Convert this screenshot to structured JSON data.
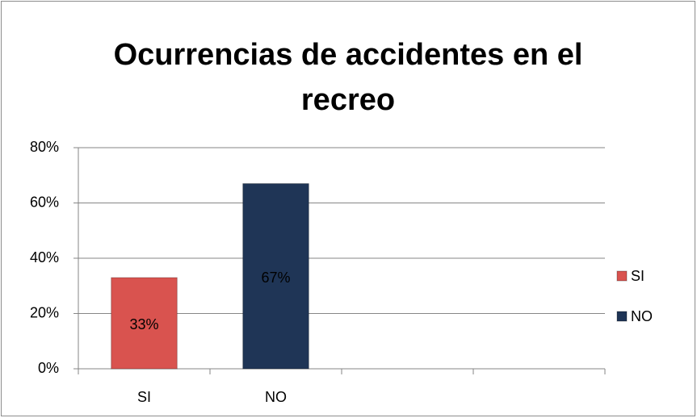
{
  "chart_data": {
    "type": "bar",
    "title": "Ocurrencias de accidentes en el recreo",
    "categories": [
      "SI",
      "NO",
      null,
      null
    ],
    "series": [
      {
        "name": "SI",
        "color": "#d9534f",
        "values": [
          33,
          null,
          null,
          null
        ],
        "value_labels": [
          "33%",
          null,
          null,
          null
        ]
      },
      {
        "name": "NO",
        "color": "#1f3556",
        "values": [
          null,
          67,
          null,
          null
        ],
        "value_labels": [
          null,
          "67%",
          null,
          null
        ]
      }
    ],
    "ylim": [
      0,
      80
    ],
    "yticks": [
      {
        "value": 0,
        "label": "0%"
      },
      {
        "value": 20,
        "label": "20%"
      },
      {
        "value": 40,
        "label": "40%"
      },
      {
        "value": 60,
        "label": "60%"
      },
      {
        "value": 80,
        "label": "80%"
      }
    ],
    "grid": true,
    "legend": "right"
  }
}
